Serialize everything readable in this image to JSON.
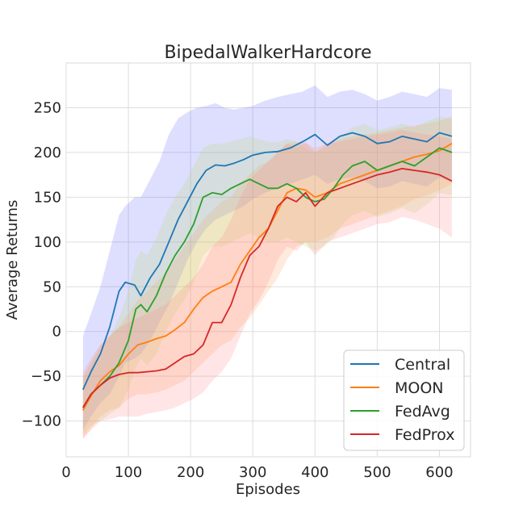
{
  "chart_data": {
    "type": "line",
    "title": "BipedalWalkerHardcore",
    "xlabel": "Episodes",
    "ylabel": "Average Returns",
    "xlim": [
      0,
      650
    ],
    "ylim": [
      -140,
      300
    ],
    "xticks": [
      0,
      100,
      200,
      300,
      400,
      500,
      600
    ],
    "yticks": [
      -100,
      -50,
      0,
      50,
      100,
      150,
      200,
      250
    ],
    "grid": true,
    "legend_position": "lower-right",
    "series": [
      {
        "name": "Central",
        "color": "#1f77b4",
        "band_color": "#6a6aff",
        "x": [
          27,
          40,
          55,
          70,
          85,
          95,
          110,
          120,
          135,
          150,
          165,
          180,
          195,
          210,
          225,
          240,
          255,
          270,
          285,
          300,
          320,
          340,
          360,
          380,
          400,
          420,
          440,
          460,
          480,
          500,
          520,
          540,
          560,
          580,
          600,
          620
        ],
        "y": [
          -65,
          -45,
          -25,
          5,
          45,
          55,
          52,
          40,
          60,
          75,
          100,
          125,
          145,
          165,
          180,
          186,
          185,
          188,
          192,
          197,
          200,
          201,
          205,
          212,
          220,
          208,
          218,
          222,
          218,
          210,
          212,
          218,
          215,
          212,
          222,
          218
        ],
        "upper": [
          -5,
          20,
          50,
          90,
          130,
          140,
          150,
          150,
          170,
          190,
          220,
          238,
          245,
          250,
          252,
          255,
          250,
          248,
          250,
          252,
          258,
          262,
          265,
          268,
          275,
          262,
          268,
          270,
          265,
          258,
          262,
          268,
          265,
          262,
          272,
          270
        ],
        "lower": [
          -110,
          -95,
          -80,
          -70,
          -50,
          -35,
          -30,
          -25,
          -10,
          10,
          30,
          55,
          80,
          100,
          115,
          125,
          130,
          135,
          140,
          148,
          155,
          160,
          165,
          170,
          175,
          165,
          170,
          172,
          168,
          160,
          162,
          168,
          165,
          162,
          172,
          168
        ]
      },
      {
        "name": "MOON",
        "color": "#ff7f0e",
        "band_color": "#ff9f5a",
        "x": [
          27,
          40,
          55,
          70,
          85,
          100,
          115,
          130,
          145,
          160,
          175,
          190,
          205,
          220,
          235,
          250,
          265,
          280,
          295,
          310,
          325,
          340,
          355,
          370,
          385,
          400,
          420,
          440,
          460,
          480,
          500,
          520,
          540,
          560,
          580,
          600,
          620
        ],
        "y": [
          -88,
          -72,
          -55,
          -45,
          -38,
          -25,
          -15,
          -12,
          -8,
          -5,
          2,
          10,
          25,
          38,
          45,
          50,
          55,
          75,
          90,
          105,
          115,
          135,
          155,
          160,
          158,
          150,
          155,
          165,
          170,
          175,
          180,
          185,
          190,
          195,
          198,
          202,
          210
        ],
        "upper": [
          -50,
          -35,
          -15,
          -5,
          5,
          20,
          35,
          45,
          55,
          65,
          80,
          95,
          110,
          125,
          135,
          145,
          150,
          165,
          175,
          185,
          190,
          200,
          210,
          212,
          210,
          205,
          210,
          215,
          218,
          220,
          222,
          225,
          228,
          230,
          232,
          235,
          240
        ],
        "lower": [
          -120,
          -108,
          -95,
          -88,
          -85,
          -75,
          -70,
          -70,
          -68,
          -65,
          -60,
          -55,
          -45,
          -35,
          -25,
          -15,
          -10,
          5,
          15,
          30,
          45,
          60,
          80,
          95,
          100,
          100,
          105,
          115,
          120,
          125,
          130,
          135,
          140,
          148,
          152,
          158,
          165
        ]
      },
      {
        "name": "FedAvg",
        "color": "#2ca02c",
        "band_color": "#b5d96a",
        "x": [
          27,
          40,
          55,
          70,
          85,
          100,
          112,
          120,
          130,
          145,
          160,
          175,
          190,
          205,
          220,
          235,
          250,
          265,
          280,
          295,
          310,
          325,
          340,
          355,
          370,
          385,
          400,
          415,
          430,
          445,
          460,
          480,
          500,
          520,
          540,
          560,
          580,
          600,
          620
        ],
        "y": [
          -85,
          -70,
          -60,
          -50,
          -35,
          -10,
          25,
          30,
          22,
          40,
          65,
          85,
          100,
          120,
          150,
          155,
          153,
          160,
          165,
          170,
          165,
          160,
          160,
          165,
          160,
          150,
          145,
          148,
          160,
          175,
          185,
          190,
          180,
          185,
          190,
          185,
          195,
          205,
          200
        ],
        "upper": [
          -55,
          -35,
          -20,
          -5,
          15,
          45,
          80,
          90,
          85,
          105,
          130,
          150,
          165,
          185,
          205,
          210,
          210,
          212,
          215,
          218,
          215,
          212,
          212,
          215,
          212,
          205,
          200,
          205,
          210,
          220,
          228,
          232,
          225,
          228,
          232,
          228,
          235,
          240,
          238
        ],
        "lower": [
          -115,
          -105,
          -100,
          -92,
          -85,
          -65,
          -40,
          -30,
          -38,
          -25,
          0,
          20,
          35,
          55,
          85,
          95,
          95,
          100,
          105,
          110,
          105,
          100,
          100,
          105,
          100,
          95,
          90,
          95,
          105,
          120,
          130,
          135,
          128,
          132,
          138,
          132,
          142,
          155,
          152
        ]
      },
      {
        "name": "FedProx",
        "color": "#d62728",
        "band_color": "#ff8a8a",
        "x": [
          27,
          40,
          55,
          70,
          85,
          100,
          115,
          130,
          145,
          160,
          175,
          190,
          205,
          220,
          235,
          250,
          265,
          280,
          295,
          310,
          325,
          340,
          355,
          370,
          385,
          400,
          420,
          440,
          460,
          480,
          500,
          520,
          540,
          560,
          580,
          600,
          620
        ],
        "y": [
          -85,
          -70,
          -60,
          -52,
          -48,
          -46,
          -46,
          -45,
          -44,
          -42,
          -35,
          -28,
          -25,
          -15,
          10,
          10,
          30,
          60,
          85,
          95,
          115,
          140,
          150,
          145,
          155,
          140,
          155,
          160,
          165,
          170,
          175,
          178,
          182,
          180,
          178,
          175,
          168
        ],
        "upper": [
          -45,
          -30,
          -15,
          -5,
          5,
          10,
          15,
          20,
          25,
          30,
          40,
          50,
          60,
          75,
          95,
          105,
          125,
          150,
          170,
          180,
          190,
          200,
          210,
          205,
          212,
          200,
          210,
          212,
          215,
          218,
          220,
          222,
          225,
          222,
          220,
          218,
          215
        ],
        "lower": [
          -120,
          -110,
          -100,
          -98,
          -95,
          -95,
          -95,
          -92,
          -90,
          -88,
          -85,
          -80,
          -75,
          -68,
          -55,
          -45,
          -30,
          -5,
          20,
          35,
          55,
          80,
          95,
          90,
          100,
          85,
          100,
          105,
          110,
          115,
          120,
          122,
          128,
          125,
          120,
          115,
          105
        ]
      }
    ]
  }
}
